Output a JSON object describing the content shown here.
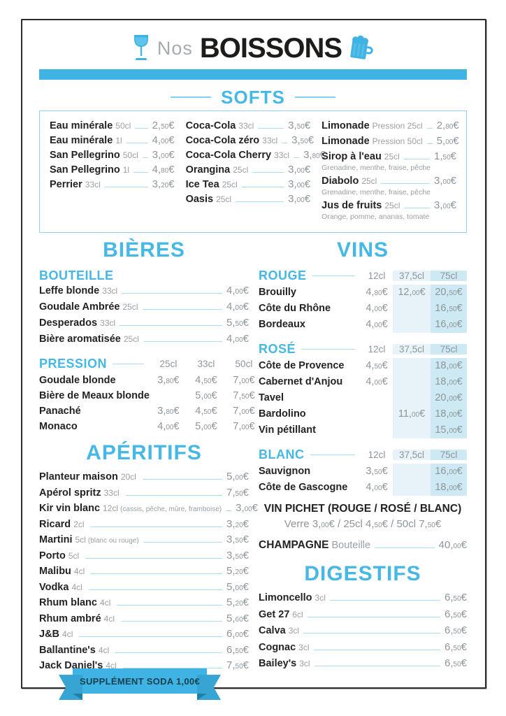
{
  "colors": {
    "accent": "#3eb3e4",
    "shade_light": "#e7f3f8",
    "shade_dark": "#cde9f3"
  },
  "header": {
    "nos": "Nos",
    "title": "BOISSONS"
  },
  "softs": {
    "title": "SOFTS",
    "col1": [
      {
        "name": "Eau minérale",
        "qty": "50cl",
        "price": "2,50"
      },
      {
        "name": "Eau minérale",
        "qty": "1l",
        "price": "4,00"
      },
      {
        "name": "San Pellegrino",
        "qty": "50cl",
        "price": "3,00"
      },
      {
        "name": "San Pellegrino",
        "qty": "1l",
        "price": "4,80"
      },
      {
        "name": "Perrier",
        "qty": "33cl",
        "price": "3,20"
      }
    ],
    "col2": [
      {
        "name": "Coca-Cola",
        "qty": "33cl",
        "price": "3,50"
      },
      {
        "name": "Coca-Cola zéro",
        "qty": "33cl",
        "price": "3,50"
      },
      {
        "name": "Coca-Cola Cherry",
        "qty": "33cl",
        "price": "3,80"
      },
      {
        "name": "Orangina",
        "qty": "25cl",
        "price": "3,00"
      },
      {
        "name": "Ice Tea",
        "qty": "25cl",
        "price": "3,00"
      },
      {
        "name": "Oasis",
        "qty": "25cl",
        "price": "3,00"
      }
    ],
    "col3": [
      {
        "name": "Limonade",
        "qty": "Pression 25cl",
        "price": "2,80"
      },
      {
        "name": "Limonade",
        "qty": "Pression 50cl",
        "price": "5,00"
      },
      {
        "name": "Sirop à l'eau",
        "qty": "25cl",
        "price": "1,50",
        "sub": "Grenadine, menthe, fraise, pêche"
      },
      {
        "name": "Diabolo",
        "qty": "25cl",
        "price": "3,00",
        "sub": "Grenadine, menthe, fraise, pêche"
      },
      {
        "name": "Jus de fruits",
        "qty": "25cl",
        "price": "3,00",
        "sub": "Orange, pomme, ananas, tomate"
      }
    ]
  },
  "bieres": {
    "title": "BIÈRES",
    "bouteille": {
      "title": "BOUTEILLE",
      "items": [
        {
          "name": "Leffe blonde",
          "qty": "33cl",
          "price": "4,00"
        },
        {
          "name": "Goudale Ambrée",
          "qty": "25cl",
          "price": "4,00"
        },
        {
          "name": "Desperados",
          "qty": "33cl",
          "price": "5,50"
        },
        {
          "name": "Bière aromatisée",
          "qty": "25cl",
          "price": "4,00"
        }
      ]
    },
    "pression": {
      "title": "PRESSION",
      "cols": [
        "25cl",
        "33cl",
        "50cl"
      ],
      "rows": [
        {
          "name": "Goudale blonde",
          "prices": [
            "3,80",
            "4,50",
            "7,00"
          ]
        },
        {
          "name": "Bière de Meaux blonde",
          "prices": [
            "",
            "5,00",
            "7,50"
          ]
        },
        {
          "name": "Panaché",
          "prices": [
            "3,80",
            "4,50",
            "7,00"
          ]
        },
        {
          "name": "Monaco",
          "prices": [
            "4,00",
            "5,00",
            "7,00"
          ]
        }
      ]
    }
  },
  "aperitifs": {
    "title": "APÉRITIFS",
    "items": [
      {
        "name": "Planteur maison",
        "qty": "20cl",
        "price": "5,00"
      },
      {
        "name": "Apérol spritz",
        "qty": "33cl",
        "price": "7,50"
      },
      {
        "name": "Kir vin blanc",
        "qty": "12cl",
        "note": "(cassis, pêche, mûre, framboise)",
        "price": "3,00"
      },
      {
        "name": "Ricard",
        "qty": "2cl",
        "price": "3,20"
      },
      {
        "name": "Martini",
        "qty": "5cl",
        "note": "(blanc ou rouge)",
        "price": "3,50"
      },
      {
        "name": "Porto",
        "qty": "5cl",
        "price": "3,50"
      },
      {
        "name": "Malibu",
        "qty": "4cl",
        "price": "5,20"
      },
      {
        "name": "Vodka",
        "qty": "4cl",
        "price": "5,00"
      },
      {
        "name": "Rhum blanc",
        "qty": "4cl",
        "price": "5,20"
      },
      {
        "name": "Rhum ambré",
        "qty": "4cl",
        "price": "5,60"
      },
      {
        "name": "J&B",
        "qty": "4cl",
        "price": "6,00"
      },
      {
        "name": "Ballantine's",
        "qty": "4cl",
        "price": "6,50"
      },
      {
        "name": "Jack Daniel's",
        "qty": "4cl",
        "price": "7,50"
      }
    ]
  },
  "vins": {
    "title": "VINS",
    "groups": [
      {
        "title": "ROUGE",
        "cols": [
          "12cl",
          "37,5cl",
          "75cl"
        ],
        "rows": [
          {
            "name": "Brouilly",
            "prices": [
              "4,80",
              "12,00",
              "20,50"
            ]
          },
          {
            "name": "Côte du Rhône",
            "prices": [
              "4,00",
              "",
              "16,50"
            ]
          },
          {
            "name": "Bordeaux",
            "prices": [
              "4,00",
              "",
              "16,00"
            ]
          }
        ]
      },
      {
        "title": "ROSÉ",
        "cols": [
          "12cl",
          "37,5cl",
          "75cl"
        ],
        "rows": [
          {
            "name": "Côte de Provence",
            "prices": [
              "4,50",
              "",
              "18,00"
            ]
          },
          {
            "name": "Cabernet d'Anjou",
            "prices": [
              "4,00",
              "",
              "18,00"
            ]
          },
          {
            "name": "Tavel",
            "prices": [
              "",
              "",
              "20,00"
            ]
          },
          {
            "name": "Bardolino",
            "prices": [
              "",
              "11,00",
              "18,00"
            ]
          },
          {
            "name": "Vin pétillant",
            "prices": [
              "",
              "",
              "15,00"
            ]
          }
        ]
      },
      {
        "title": "BLANC",
        "cols": [
          "12cl",
          "37,5cl",
          "75cl"
        ],
        "rows": [
          {
            "name": "Sauvignon",
            "prices": [
              "3,50",
              "",
              "16,00"
            ]
          },
          {
            "name": "Côte de Gascogne",
            "prices": [
              "4,00",
              "",
              "18,00"
            ]
          }
        ]
      }
    ],
    "pichet": {
      "title": "VIN PICHET  (ROUGE / ROSÉ / BLANC)",
      "parts": [
        {
          "label": "Verre ",
          "price": "3,00"
        },
        {
          "label": " / 25cl ",
          "price": "4,50"
        },
        {
          "label": " / 50cl ",
          "price": "7,50"
        }
      ]
    },
    "champagne": {
      "name": "CHAMPAGNE",
      "qty": "Bouteille",
      "price": "40,00"
    }
  },
  "digestifs": {
    "title": "DIGESTIFS",
    "items": [
      {
        "name": "Limoncello",
        "qty": "3cl",
        "price": "6,50"
      },
      {
        "name": "Get 27",
        "qty": "6cl",
        "price": "6,50"
      },
      {
        "name": "Calva",
        "qty": "3cl",
        "price": "6,50"
      },
      {
        "name": "Cognac",
        "qty": "3cl",
        "price": "6,50"
      },
      {
        "name": "Bailey's",
        "qty": "3cl",
        "price": "6,50"
      }
    ]
  },
  "ribbon": {
    "text": "SUPPLÉMENT SODA 1,00€"
  }
}
